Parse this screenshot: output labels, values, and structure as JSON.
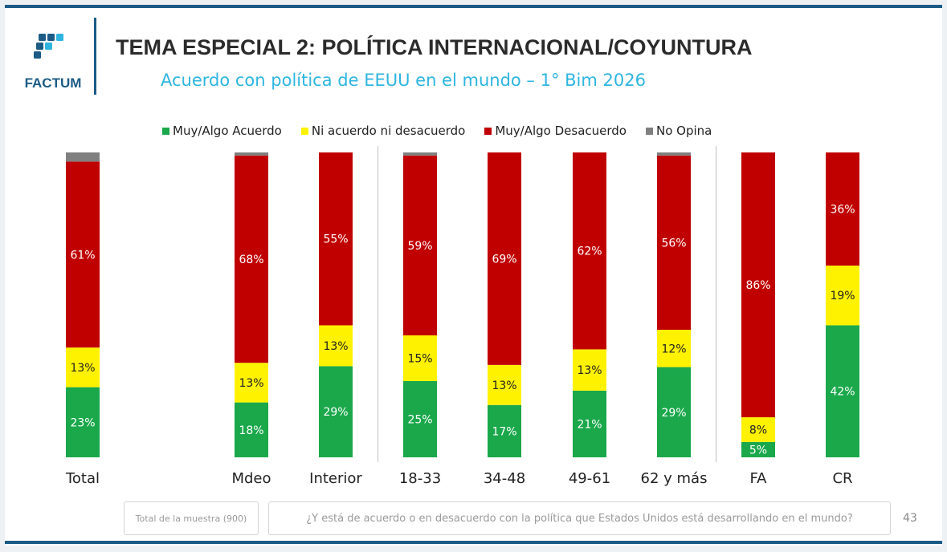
{
  "header": {
    "logo_text": "FACTUM",
    "title": "TEMA ESPECIAL 2: POLÍTICA INTERNACIONAL/COYUNTURA",
    "subtitle": "Acuerdo con política de EEUU en el mundo – 1° Bim 2026"
  },
  "legend": [
    {
      "label": "Muy/Algo Acuerdo",
      "color": "#1aa84b"
    },
    {
      "label": "Ni acuerdo ni desacuerdo",
      "color": "#fff200"
    },
    {
      "label": "Muy/Algo Desacuerdo",
      "color": "#c00000"
    },
    {
      "label": "No Opina",
      "color": "#808080"
    }
  ],
  "chart_data": {
    "type": "bar",
    "stacked": true,
    "unit": "%",
    "categories": [
      "Total",
      "Mdeo",
      "Interior",
      "18-33",
      "34-48",
      "49-61",
      "62 y más",
      "FA",
      "CR"
    ],
    "series": [
      {
        "name": "Muy/Algo Acuerdo",
        "color": "#1aa84b",
        "values": [
          23,
          18,
          29,
          25,
          17,
          21,
          29,
          5,
          42
        ]
      },
      {
        "name": "Ni acuerdo ni desacuerdo",
        "color": "#fff200",
        "values": [
          13,
          13,
          13,
          15,
          13,
          13,
          12,
          8,
          19
        ]
      },
      {
        "name": "Muy/Algo Desacuerdo",
        "color": "#c00000",
        "values": [
          61,
          68,
          55,
          59,
          69,
          62,
          56,
          86,
          36
        ]
      },
      {
        "name": "No Opina",
        "color": "#808080",
        "values": [
          3,
          1,
          0,
          1,
          0,
          0,
          1,
          0,
          0
        ]
      }
    ],
    "group_separators_after": [
      "Interior",
      "62 y más"
    ],
    "legend_position": "top"
  },
  "footer": {
    "sample": "Total de la muestra (900)",
    "question": "¿Y está de acuerdo o en desacuerdo con la política que Estados Unidos está desarrollando en el mundo?",
    "page_number": "43"
  }
}
